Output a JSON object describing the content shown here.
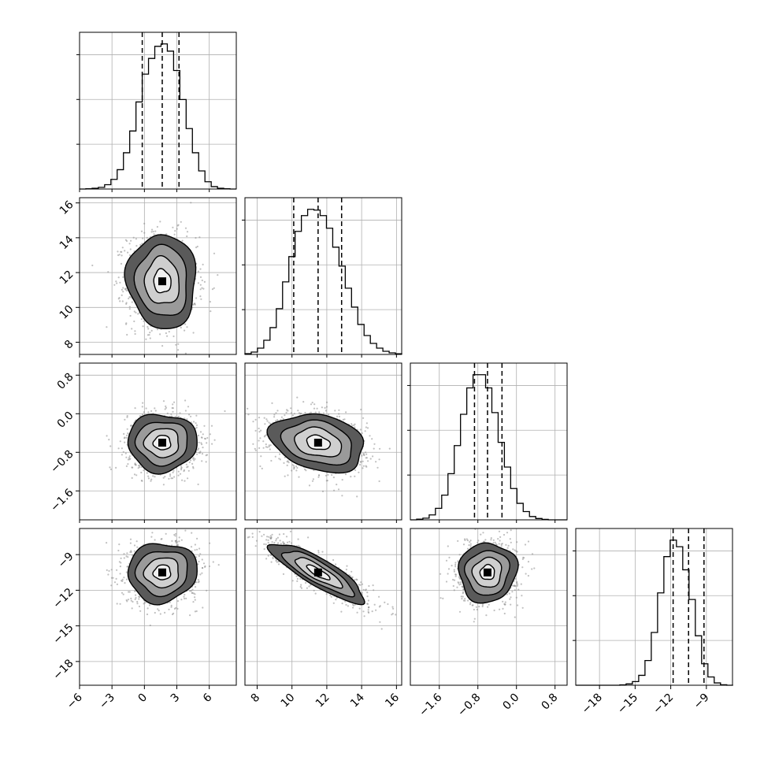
{
  "chart_data": {
    "type": "corner",
    "grid": true,
    "parameters": [
      {
        "index": 0,
        "range": [
          -6,
          8.5
        ],
        "ticks": [
          -6,
          -3,
          0,
          3,
          6
        ],
        "tick_labels": [
          "−6",
          "−3",
          "0",
          "3",
          "6"
        ],
        "quantiles": [
          -0.2,
          1.65,
          3.2
        ],
        "mean": 1.65,
        "sigma": 1.6
      },
      {
        "index": 1,
        "range": [
          7.3,
          16.3
        ],
        "ticks": [
          8,
          10,
          12,
          14,
          16
        ],
        "tick_labels": [
          "8",
          "10",
          "12",
          "14",
          "16"
        ],
        "quantiles": [
          10.1,
          11.5,
          12.85
        ],
        "mean": 11.5,
        "sigma": 1.35
      },
      {
        "index": 2,
        "range": [
          -2.2,
          1.05
        ],
        "ticks": [
          -1.6,
          -0.8,
          0.0,
          0.8
        ],
        "tick_labels": [
          "−1.6",
          "−0.8",
          "0.0",
          "0.8"
        ],
        "quantiles": [
          -0.87,
          -0.6,
          -0.3
        ],
        "mean": -0.6,
        "sigma": 0.3
      },
      {
        "index": 3,
        "range": [
          -20.0,
          -6.8
        ],
        "ticks": [
          -18,
          -15,
          -12,
          -9
        ],
        "tick_labels": [
          "−18",
          "−15",
          "−12",
          "−9"
        ],
        "quantiles": [
          -11.8,
          -10.5,
          -9.2
        ],
        "mean": -10.5,
        "sigma": 1.25
      }
    ],
    "histograms": [
      {
        "param": 0,
        "bin_edges": [
          -6.0,
          -5.42,
          -4.84,
          -4.26,
          -3.68,
          -3.1,
          -2.52,
          -1.94,
          -1.36,
          -0.78,
          -0.2,
          0.38,
          0.96,
          1.54,
          2.12,
          2.7,
          3.28,
          3.86,
          4.44,
          5.02,
          5.6,
          6.18,
          6.76,
          7.34,
          7.92,
          8.5
        ],
        "counts": [
          0,
          2,
          6,
          14,
          36,
          80,
          160,
          300,
          480,
          720,
          950,
          1080,
          1180,
          1200,
          1140,
          980,
          740,
          500,
          300,
          150,
          60,
          20,
          6,
          2,
          0
        ]
      },
      {
        "param": 1,
        "bin_edges": [
          7.3,
          7.66,
          8.02,
          8.38,
          8.74,
          9.1,
          9.46,
          9.82,
          10.18,
          10.54,
          10.9,
          11.26,
          11.62,
          11.98,
          12.34,
          12.7,
          13.06,
          13.42,
          13.78,
          14.14,
          14.5,
          14.86,
          15.22,
          15.58,
          15.94,
          16.3
        ],
        "counts": [
          5,
          15,
          40,
          90,
          170,
          290,
          460,
          620,
          780,
          880,
          920,
          915,
          880,
          800,
          680,
          560,
          420,
          300,
          190,
          120,
          70,
          40,
          20,
          10,
          4
        ]
      },
      {
        "param": 2,
        "bin_edges": [
          -2.2,
          -2.07,
          -1.94,
          -1.81,
          -1.68,
          -1.55,
          -1.42,
          -1.29,
          -1.16,
          -1.03,
          -0.9,
          -0.77,
          -0.64,
          -0.51,
          -0.38,
          -0.25,
          -0.12,
          0.01,
          0.14,
          0.27,
          0.4,
          0.53,
          0.66,
          0.79,
          0.92,
          1.05
        ],
        "counts": [
          0,
          4,
          10,
          30,
          70,
          150,
          280,
          450,
          640,
          800,
          880,
          880,
          800,
          650,
          470,
          320,
          190,
          100,
          50,
          20,
          8,
          3,
          0,
          0,
          0
        ]
      },
      {
        "param": 3,
        "bin_edges": [
          -20.0,
          -19.47,
          -18.94,
          -18.41,
          -17.88,
          -17.35,
          -16.82,
          -16.29,
          -15.76,
          -15.23,
          -14.7,
          -14.17,
          -13.64,
          -13.11,
          -12.58,
          -12.05,
          -11.52,
          -10.99,
          -10.46,
          -9.93,
          -9.4,
          -8.87,
          -8.34,
          -7.81,
          -7.28,
          -6.75
        ],
        "counts": [
          0,
          0,
          0,
          0,
          0,
          0,
          0,
          2,
          8,
          22,
          60,
          150,
          320,
          560,
          780,
          880,
          840,
          700,
          520,
          300,
          130,
          50,
          14,
          3,
          0
        ]
      }
    ],
    "pairs": [
      {
        "x_param": 0,
        "y_param": 1,
        "correlation": -0.05
      },
      {
        "x_param": 0,
        "y_param": 2,
        "correlation": 0.0
      },
      {
        "x_param": 1,
        "y_param": 2,
        "correlation": -0.25
      },
      {
        "x_param": 0,
        "y_param": 3,
        "correlation": 0.05
      },
      {
        "x_param": 1,
        "y_param": 3,
        "correlation": -0.85
      },
      {
        "x_param": 2,
        "y_param": 3,
        "correlation": 0.05
      }
    ],
    "contour_levels_sigma": [
      0.5,
      1.0,
      1.5,
      2.0
    ],
    "colors": {
      "line": "#000000",
      "grid": "#b0b0b0",
      "points": "#8c8c8c",
      "fill": "#404040"
    }
  }
}
